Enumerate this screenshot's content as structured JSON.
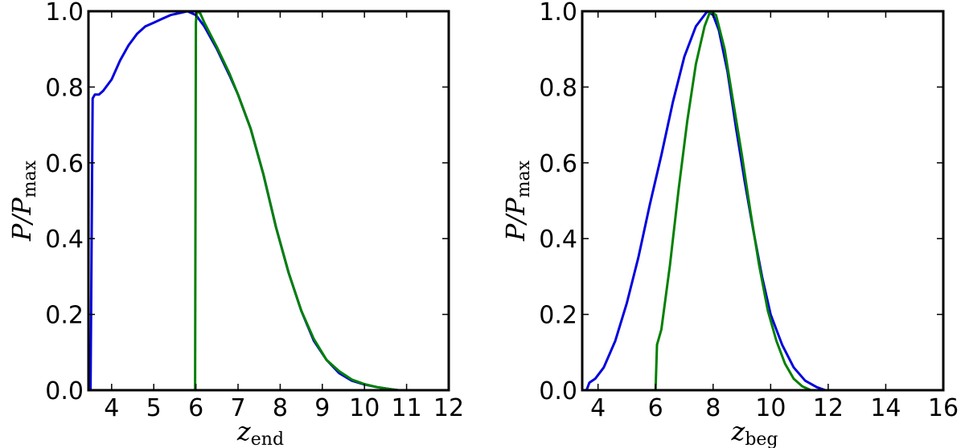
{
  "chart_data": [
    {
      "type": "line",
      "xlabel": "z",
      "xlabel_sub": "end",
      "ylabel": "P/P",
      "ylabel_sub": "max",
      "xlim": [
        3.45,
        12
      ],
      "ylim": [
        0,
        1
      ],
      "xticks": [
        "4",
        "5",
        "6",
        "7",
        "8",
        "9",
        "10",
        "11",
        "12"
      ],
      "yticks": [
        "0.0",
        "0.2",
        "0.4",
        "0.6",
        "0.8",
        "1.0"
      ],
      "grid": false,
      "series": [
        {
          "color": "#0000dd",
          "points": [
            [
              3.5,
              0
            ],
            [
              3.55,
              0.77
            ],
            [
              3.6,
              0.78
            ],
            [
              3.7,
              0.78
            ],
            [
              3.8,
              0.79
            ],
            [
              4.0,
              0.82
            ],
            [
              4.2,
              0.87
            ],
            [
              4.4,
              0.91
            ],
            [
              4.6,
              0.94
            ],
            [
              4.8,
              0.96
            ],
            [
              5.0,
              0.97
            ],
            [
              5.2,
              0.98
            ],
            [
              5.4,
              0.99
            ],
            [
              5.6,
              0.995
            ],
            [
              5.8,
              1.0
            ],
            [
              6.0,
              0.99
            ],
            [
              6.2,
              0.96
            ],
            [
              6.5,
              0.9
            ],
            [
              6.8,
              0.83
            ],
            [
              7.0,
              0.78
            ],
            [
              7.3,
              0.69
            ],
            [
              7.6,
              0.57
            ],
            [
              7.9,
              0.43
            ],
            [
              8.2,
              0.31
            ],
            [
              8.5,
              0.21
            ],
            [
              8.8,
              0.13
            ],
            [
              9.1,
              0.08
            ],
            [
              9.4,
              0.045
            ],
            [
              9.7,
              0.025
            ],
            [
              10.0,
              0.015
            ],
            [
              10.3,
              0.008
            ],
            [
              10.6,
              0.003
            ],
            [
              10.8,
              0.0
            ]
          ]
        },
        {
          "color": "#008000",
          "points": [
            [
              5.98,
              0
            ],
            [
              6.0,
              0.97
            ],
            [
              6.02,
              1.0
            ],
            [
              6.1,
              0.995
            ],
            [
              6.2,
              0.97
            ],
            [
              6.5,
              0.905
            ],
            [
              6.8,
              0.835
            ],
            [
              7.0,
              0.78
            ],
            [
              7.3,
              0.69
            ],
            [
              7.6,
              0.57
            ],
            [
              7.9,
              0.43
            ],
            [
              8.2,
              0.31
            ],
            [
              8.5,
              0.21
            ],
            [
              8.8,
              0.135
            ],
            [
              9.1,
              0.08
            ],
            [
              9.4,
              0.05
            ],
            [
              9.7,
              0.028
            ],
            [
              10.0,
              0.016
            ],
            [
              10.3,
              0.008
            ],
            [
              10.6,
              0.003
            ],
            [
              10.8,
              0.0
            ]
          ]
        }
      ]
    },
    {
      "type": "line",
      "xlabel": "z",
      "xlabel_sub": "beg",
      "ylabel": "P/P",
      "ylabel_sub": "max",
      "xlim": [
        3.45,
        16
      ],
      "ylim": [
        0,
        1
      ],
      "xticks": [
        "4",
        "6",
        "8",
        "10",
        "12",
        "14",
        "16"
      ],
      "yticks": [
        "0.0",
        "0.2",
        "0.4",
        "0.6",
        "0.8",
        "1.0"
      ],
      "grid": false,
      "series": [
        {
          "color": "#0000dd",
          "points": [
            [
              3.6,
              0
            ],
            [
              3.7,
              0.02
            ],
            [
              3.9,
              0.03
            ],
            [
              4.2,
              0.06
            ],
            [
              4.6,
              0.13
            ],
            [
              5.0,
              0.23
            ],
            [
              5.4,
              0.35
            ],
            [
              5.8,
              0.49
            ],
            [
              6.2,
              0.62
            ],
            [
              6.6,
              0.76
            ],
            [
              7.0,
              0.88
            ],
            [
              7.4,
              0.96
            ],
            [
              7.8,
              1.0
            ],
            [
              8.0,
              0.99
            ],
            [
              8.2,
              0.95
            ],
            [
              8.5,
              0.84
            ],
            [
              8.8,
              0.69
            ],
            [
              9.1,
              0.55
            ],
            [
              9.4,
              0.42
            ],
            [
              9.7,
              0.3
            ],
            [
              10.0,
              0.2
            ],
            [
              10.4,
              0.12
            ],
            [
              10.8,
              0.06
            ],
            [
              11.2,
              0.025
            ],
            [
              11.6,
              0.008
            ],
            [
              11.9,
              0.0
            ]
          ]
        },
        {
          "color": "#008000",
          "points": [
            [
              6.0,
              0
            ],
            [
              6.05,
              0.12
            ],
            [
              6.2,
              0.16
            ],
            [
              6.5,
              0.33
            ],
            [
              6.8,
              0.53
            ],
            [
              7.1,
              0.71
            ],
            [
              7.4,
              0.86
            ],
            [
              7.7,
              0.96
            ],
            [
              7.9,
              1.0
            ],
            [
              8.1,
              0.99
            ],
            [
              8.4,
              0.9
            ],
            [
              8.7,
              0.76
            ],
            [
              9.0,
              0.62
            ],
            [
              9.3,
              0.47
            ],
            [
              9.6,
              0.33
            ],
            [
              9.9,
              0.21
            ],
            [
              10.2,
              0.13
            ],
            [
              10.5,
              0.07
            ],
            [
              10.8,
              0.03
            ],
            [
              11.1,
              0.01
            ],
            [
              11.4,
              0.0
            ]
          ]
        }
      ]
    }
  ]
}
